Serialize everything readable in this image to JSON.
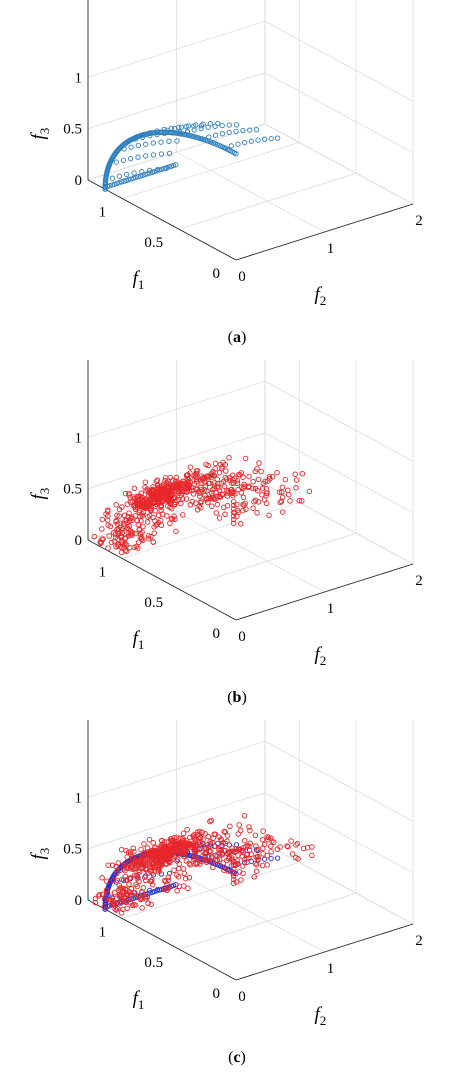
{
  "chart_data": [
    {
      "panel": "a",
      "type": "scatter3d",
      "caption_letter": "a",
      "xlabel": "f",
      "xlabel_sub": "1",
      "ylabel": "f",
      "ylabel_sub": "2",
      "zlabel": "f",
      "zlabel_sub": "3",
      "xlim": [
        0,
        1.3
      ],
      "ylim": [
        0,
        2
      ],
      "zlim": [
        0,
        1.1
      ],
      "xticks": [
        "0",
        "0.5",
        "1"
      ],
      "yticks": [
        "0",
        "1",
        "2"
      ],
      "zticks": [
        "0",
        "0.5",
        "1"
      ],
      "grid": true,
      "series": [
        {
          "marker": "circle",
          "color": "#2F7FBF",
          "style": "pareto-front"
        }
      ]
    },
    {
      "panel": "b",
      "type": "scatter3d",
      "caption_letter": "b",
      "xlabel": "f",
      "xlabel_sub": "1",
      "ylabel": "f",
      "ylabel_sub": "2",
      "zlabel": "f",
      "zlabel_sub": "3",
      "xlim": [
        0,
        1.3
      ],
      "ylim": [
        0,
        2
      ],
      "zlim": [
        0,
        1.1
      ],
      "xticks": [
        "0",
        "0.5",
        "1"
      ],
      "yticks": [
        "0",
        "1",
        "2"
      ],
      "zticks": [
        "0",
        "0.5",
        "1"
      ],
      "grid": true,
      "series": [
        {
          "marker": "circle",
          "color": "#E8262A",
          "style": "obtained"
        }
      ]
    },
    {
      "panel": "c",
      "type": "scatter3d",
      "caption_letter": "c",
      "xlabel": "f",
      "xlabel_sub": "1",
      "ylabel": "f",
      "ylabel_sub": "2",
      "zlabel": "f",
      "zlabel_sub": "3",
      "xlim": [
        0,
        1.3
      ],
      "ylim": [
        0,
        2
      ],
      "zlim": [
        0,
        1.1
      ],
      "xticks": [
        "0",
        "0.5",
        "1"
      ],
      "yticks": [
        "0",
        "1",
        "2"
      ],
      "zticks": [
        "0",
        "0.5",
        "1"
      ],
      "grid": true,
      "series": [
        {
          "marker": "circle",
          "color": "#1F2FD6",
          "style": "pareto-front"
        },
        {
          "marker": "circle",
          "color": "#E8262A",
          "style": "obtained"
        }
      ]
    }
  ]
}
